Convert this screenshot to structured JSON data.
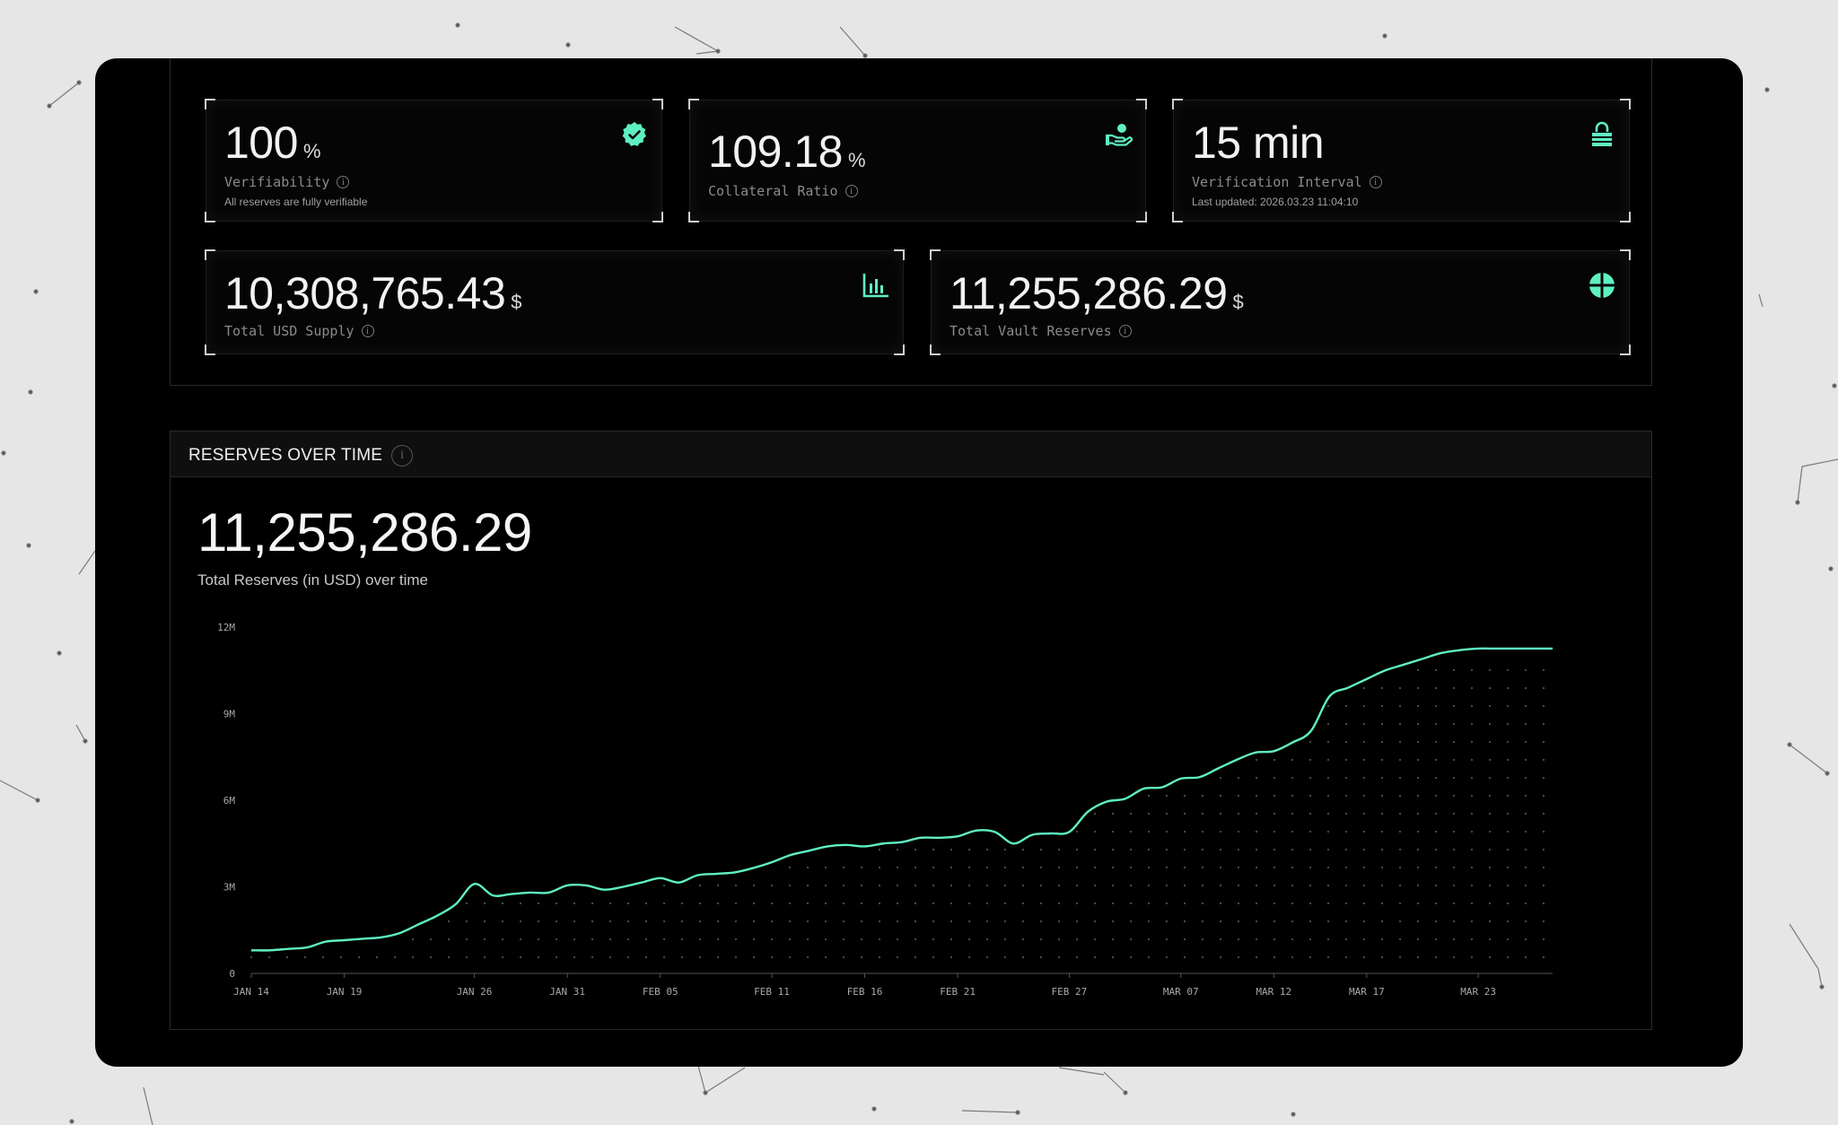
{
  "colors": {
    "accent": "#5ff0c2",
    "window_bg": "#000000",
    "page_bg": "#e6e6e6"
  },
  "cards": [
    {
      "value": "100",
      "unit": "%",
      "label": "Verifiability",
      "sub": "All reserves are fully verifiable",
      "icon": "verified-badge-icon"
    },
    {
      "value": "109.18",
      "unit": "%",
      "label": "Collateral Ratio",
      "icon": "hand-coin-icon"
    },
    {
      "value": "15 min",
      "unit": "",
      "label": "Verification Interval",
      "sub": "Last updated: 2026.03.23 11:04:10",
      "icon": "lock-icon"
    },
    {
      "value": "10,308,765.43",
      "unit": "$",
      "label": "Total USD Supply",
      "icon": "bar-chart-icon"
    },
    {
      "value": "11,255,286.29",
      "unit": "$",
      "label": "Total Vault Reserves",
      "icon": "pie-chart-icon"
    }
  ],
  "reserves_chart": {
    "header": "RESERVES OVER TIME",
    "value": "11,255,286.29",
    "subtitle": "Total Reserves (in USD) over time"
  },
  "chart_data": {
    "type": "area",
    "title": "RESERVES OVER TIME",
    "xlabel": "",
    "ylabel": "",
    "x_tick_labels": [
      "JAN 14",
      "JAN 19",
      "JAN 26",
      "JAN 31",
      "FEB 05",
      "FEB 11",
      "FEB 16",
      "FEB 21",
      "FEB 27",
      "MAR 07",
      "MAR 12",
      "MAR 17",
      "MAR 23"
    ],
    "y_tick_labels": [
      "0",
      "3M",
      "6M",
      "9M",
      "12M"
    ],
    "y_ticks": [
      0,
      3000000,
      6000000,
      9000000,
      12000000
    ],
    "ylim": [
      0,
      12000000
    ],
    "xlim": [
      0,
      70
    ],
    "x_tick_positions": [
      0,
      5,
      12,
      17,
      22,
      28,
      33,
      38,
      44,
      50,
      55,
      60,
      66
    ],
    "x": [
      0,
      1,
      2,
      3,
      4,
      5,
      6,
      7,
      8,
      9,
      10,
      11,
      12,
      13,
      14,
      15,
      16,
      17,
      18,
      19,
      20,
      21,
      22,
      23,
      24,
      25,
      26,
      27,
      28,
      29,
      30,
      31,
      32,
      33,
      34,
      35,
      36,
      37,
      38,
      39,
      40,
      41,
      42,
      43,
      44,
      45,
      46,
      47,
      48,
      49,
      50,
      51,
      52,
      53,
      54,
      55,
      56,
      57,
      58,
      59,
      60,
      61,
      62,
      63,
      64,
      65,
      66,
      67,
      68,
      69,
      70
    ],
    "values": [
      800000,
      800000,
      850000,
      900000,
      1100000,
      1150000,
      1200000,
      1250000,
      1400000,
      1700000,
      2000000,
      2400000,
      3100000,
      2700000,
      2750000,
      2800000,
      2800000,
      3050000,
      3050000,
      2900000,
      3000000,
      3150000,
      3300000,
      3150000,
      3400000,
      3450000,
      3500000,
      3650000,
      3850000,
      4100000,
      4250000,
      4400000,
      4450000,
      4400000,
      4500000,
      4550000,
      4700000,
      4700000,
      4750000,
      4950000,
      4900000,
      4500000,
      4800000,
      4850000,
      4900000,
      5600000,
      5950000,
      6050000,
      6400000,
      6450000,
      6750000,
      6800000,
      7100000,
      7400000,
      7650000,
      7700000,
      8000000,
      8400000,
      9600000,
      9900000,
      10200000,
      10500000,
      10700000,
      10900000,
      11100000,
      11200000,
      11255286,
      11255286,
      11255286,
      11255286,
      11255286
    ],
    "grid": false,
    "legend": "none"
  }
}
